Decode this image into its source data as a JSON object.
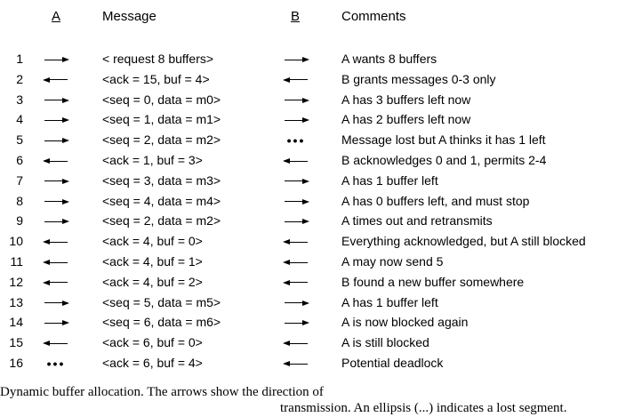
{
  "headers": {
    "a": "A",
    "message": "Message",
    "b": "B",
    "comments": "Comments"
  },
  "rows": [
    {
      "num": "1",
      "a": "right",
      "message": "< request 8 buffers>",
      "b": "right",
      "comment": "A wants 8 buffers"
    },
    {
      "num": "2",
      "a": "left",
      "message": "<ack = 15, buf = 4>",
      "b": "left",
      "comment": "B grants messages 0-3 only"
    },
    {
      "num": "3",
      "a": "right",
      "message": "<seq = 0, data = m0>",
      "b": "right",
      "comment": "A has 3 buffers left now"
    },
    {
      "num": "4",
      "a": "right",
      "message": "<seq = 1, data = m1>",
      "b": "right",
      "comment": "A has 2 buffers left now"
    },
    {
      "num": "5",
      "a": "right",
      "message": "<seq = 2, data = m2>",
      "b": "lost",
      "comment": "Message lost but A thinks it has 1 left"
    },
    {
      "num": "6",
      "a": "left",
      "message": "<ack = 1, buf = 3>",
      "b": "left",
      "comment": "B acknowledges 0 and 1, permits 2-4"
    },
    {
      "num": "7",
      "a": "right",
      "message": "<seq = 3, data = m3>",
      "b": "right",
      "comment": "A has 1 buffer left"
    },
    {
      "num": "8",
      "a": "right",
      "message": "<seq = 4, data = m4>",
      "b": "right",
      "comment": "A has 0 buffers left, and must stop"
    },
    {
      "num": "9",
      "a": "right",
      "message": "<seq = 2, data = m2>",
      "b": "right",
      "comment": "A times out and retransmits"
    },
    {
      "num": "10",
      "a": "left",
      "message": "<ack = 4, buf = 0>",
      "b": "left",
      "comment": "Everything acknowledged, but A still blocked"
    },
    {
      "num": "11",
      "a": "left",
      "message": "<ack = 4, buf = 1>",
      "b": "left",
      "comment": "A may now send 5"
    },
    {
      "num": "12",
      "a": "left",
      "message": "<ack = 4, buf = 2>",
      "b": "left",
      "comment": "B found a new buffer somewhere"
    },
    {
      "num": "13",
      "a": "right",
      "message": "<seq = 5, data = m5>",
      "b": "right",
      "comment": "A has 1 buffer left"
    },
    {
      "num": "14",
      "a": "right",
      "message": "<seq = 6, data = m6>",
      "b": "right",
      "comment": "A is now blocked again"
    },
    {
      "num": "15",
      "a": "left",
      "message": "<ack = 6, buf = 0>",
      "b": "left",
      "comment": "A is still blocked"
    },
    {
      "num": "16",
      "a": "lost",
      "message": "<ack = 6, buf = 4>",
      "b": "left",
      "comment": "Potential deadlock"
    }
  ],
  "lost_glyph": "•••",
  "caption": {
    "line1": "Dynamic buffer allocation.  The arrows show the direction of",
    "line2": "transmission.  An ellipsis (...) indicates a lost segment."
  }
}
